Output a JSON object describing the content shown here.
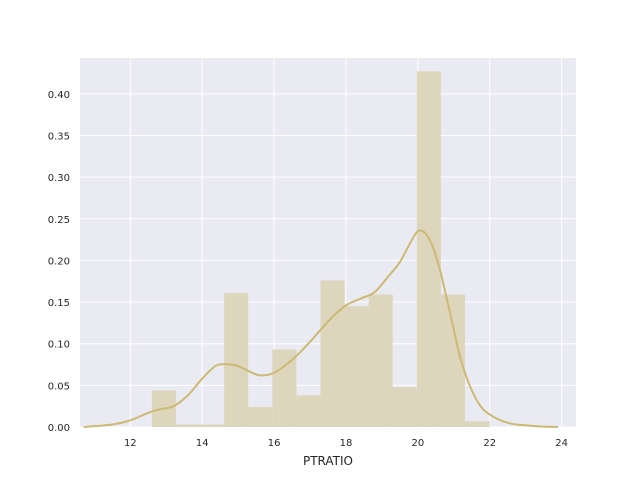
{
  "chart_data": {
    "type": "bar",
    "subtype": "histogram-with-kde",
    "xlabel": "PTRATIO",
    "ylabel": "",
    "title": "",
    "xlim": [
      10.6,
      24.4
    ],
    "ylim": [
      0,
      0.443
    ],
    "grid": true,
    "background_color": "#eaeaf2",
    "bar_color": "#ddd6bd",
    "line_color": "#ccb974",
    "x_ticks": [
      {
        "value": 12,
        "label": "12"
      },
      {
        "value": 14,
        "label": "14"
      },
      {
        "value": 16,
        "label": "16"
      },
      {
        "value": 18,
        "label": "18"
      },
      {
        "value": 20,
        "label": "20"
      },
      {
        "value": 22,
        "label": "22"
      },
      {
        "value": 24,
        "label": "24"
      }
    ],
    "y_ticks": [
      {
        "value": 0,
        "label": "0.00"
      },
      {
        "value": 0.05,
        "label": "0.05"
      },
      {
        "value": 0.1,
        "label": "0.10"
      },
      {
        "value": 0.15,
        "label": "0.15"
      },
      {
        "value": 0.2,
        "label": "0.20"
      },
      {
        "value": 0.25,
        "label": "0.25"
      },
      {
        "value": 0.3,
        "label": "0.30"
      },
      {
        "value": 0.35,
        "label": "0.35"
      },
      {
        "value": 0.4,
        "label": "0.40"
      }
    ],
    "bins": [
      {
        "x0": 12.6,
        "x1": 13.27,
        "value": 0.044
      },
      {
        "x0": 13.27,
        "x1": 13.94,
        "value": 0.003
      },
      {
        "x0": 13.94,
        "x1": 14.61,
        "value": 0.003
      },
      {
        "x0": 14.61,
        "x1": 15.28,
        "value": 0.161
      },
      {
        "x0": 15.28,
        "x1": 15.95,
        "value": 0.024
      },
      {
        "x0": 15.95,
        "x1": 16.62,
        "value": 0.093
      },
      {
        "x0": 16.62,
        "x1": 17.29,
        "value": 0.038
      },
      {
        "x0": 17.29,
        "x1": 17.96,
        "value": 0.176
      },
      {
        "x0": 17.96,
        "x1": 18.63,
        "value": 0.145
      },
      {
        "x0": 18.63,
        "x1": 19.3,
        "value": 0.159
      },
      {
        "x0": 19.3,
        "x1": 19.97,
        "value": 0.048
      },
      {
        "x0": 19.97,
        "x1": 20.64,
        "value": 0.427
      },
      {
        "x0": 20.64,
        "x1": 21.31,
        "value": 0.159
      },
      {
        "x0": 21.31,
        "x1": 22.0,
        "value": 0.007
      }
    ],
    "kde": {
      "x": [
        10.7,
        11.0,
        11.5,
        12.0,
        12.5,
        12.8,
        13.2,
        13.6,
        14.0,
        14.4,
        14.8,
        15.0,
        15.3,
        15.6,
        16.0,
        16.4,
        16.8,
        17.2,
        17.6,
        18.0,
        18.4,
        18.8,
        19.2,
        19.5,
        19.8,
        20.0,
        20.2,
        20.4,
        20.6,
        20.8,
        21.0,
        21.2,
        21.5,
        21.8,
        22.2,
        22.6,
        23.0,
        23.5,
        23.9
      ],
      "y": [
        0.0,
        0.001,
        0.003,
        0.008,
        0.017,
        0.021,
        0.025,
        0.038,
        0.058,
        0.074,
        0.075,
        0.073,
        0.067,
        0.062,
        0.065,
        0.077,
        0.093,
        0.112,
        0.131,
        0.146,
        0.154,
        0.162,
        0.182,
        0.198,
        0.222,
        0.235,
        0.233,
        0.218,
        0.191,
        0.155,
        0.117,
        0.08,
        0.044,
        0.022,
        0.01,
        0.004,
        0.002,
        0.0005,
        0.0001
      ]
    }
  }
}
